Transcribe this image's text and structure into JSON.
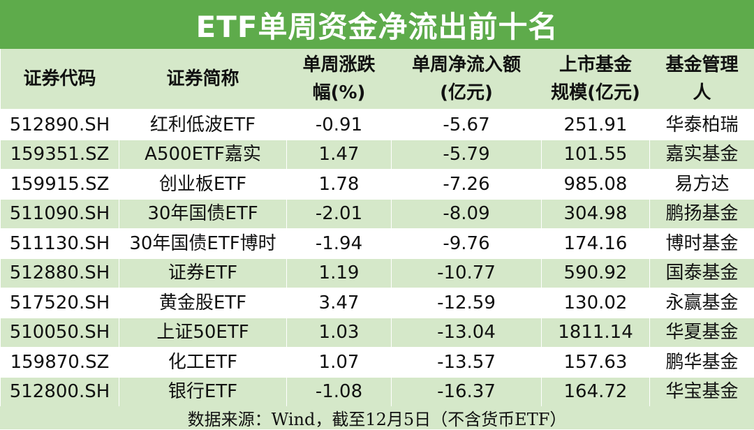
{
  "title": "ETF单周资金净流出前十名",
  "headers": [
    {
      "line1": "证券代码",
      "line2": ""
    },
    {
      "line1": "证券简称",
      "line2": ""
    },
    {
      "line1": "单周涨跌",
      "line2": "幅(%)"
    },
    {
      "line1": "单周净流入额",
      "line2": "(亿元)"
    },
    {
      "line1": "上市基金",
      "line2": "规模(亿元)"
    },
    {
      "line1": "基金管理",
      "line2": "人"
    }
  ],
  "rows": [
    [
      "512890.SH",
      "红利低波ETF",
      "-0.91",
      "-5.67",
      "251.91",
      "华泰柏瑞"
    ],
    [
      "159351.SZ",
      "A500ETF嘉实",
      "1.47",
      "-5.79",
      "101.55",
      "嘉实基金"
    ],
    [
      "159915.SZ",
      "创业板ETF",
      "1.78",
      "-7.26",
      "985.08",
      "易方达"
    ],
    [
      "511090.SH",
      "30年国债ETF",
      "-2.01",
      "-8.09",
      "304.98",
      "鹏扬基金"
    ],
    [
      "511130.SH",
      "30年国债ETF博时",
      "-1.94",
      "-9.76",
      "174.16",
      "博时基金"
    ],
    [
      "512880.SH",
      "证券ETF",
      "1.19",
      "-10.77",
      "590.92",
      "国泰基金"
    ],
    [
      "517520.SH",
      "黄金股ETF",
      "3.47",
      "-12.59",
      "130.02",
      "永赢基金"
    ],
    [
      "510050.SH",
      "上证50ETF",
      "1.03",
      "-13.04",
      "1811.14",
      "华夏基金"
    ],
    [
      "159870.SZ",
      "化工ETF",
      "1.07",
      "-13.57",
      "157.63",
      "鹏华基金"
    ],
    [
      "512800.SH",
      "银行ETF",
      "-1.08",
      "-16.37",
      "164.72",
      "华宝基金"
    ]
  ],
  "footer": "数据来源：Wind，截至12月5日（不含货币ETF）",
  "colors": {
    "title_bg": "#5eab4b",
    "stripe": "#d5e8c9",
    "title_text": "#ffffff"
  }
}
